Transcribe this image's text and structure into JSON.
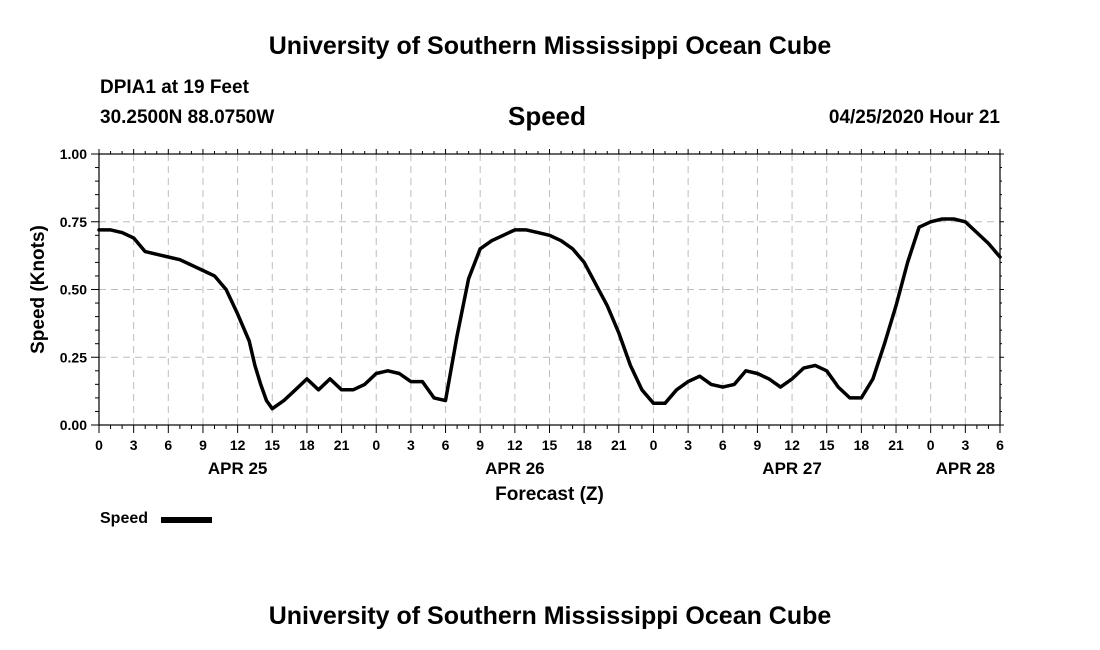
{
  "header": {
    "title_top": "University of Southern Mississippi Ocean Cube",
    "title_bottom": "University of Southern Mississippi Ocean Cube",
    "station": "DPIA1 at 19 Feet",
    "location": "30.2500N 88.0750W",
    "datetime": "04/25/2020 Hour 21"
  },
  "chart_data": {
    "type": "line",
    "title": "Speed",
    "xlabel": "Forecast (Z)",
    "ylabel": "Speed (Knots)",
    "xlim": [
      0,
      78
    ],
    "ylim": [
      0,
      1
    ],
    "grid": true,
    "y_ticks": [
      0,
      0.25,
      0.5,
      0.75,
      1.0
    ],
    "y_tick_labels": [
      "0.00",
      "0.25",
      "0.50",
      "0.75",
      "1.00"
    ],
    "x_ticks": [
      0,
      3,
      6,
      9,
      12,
      15,
      18,
      21,
      24,
      27,
      30,
      33,
      36,
      39,
      42,
      45,
      48,
      51,
      54,
      57,
      60,
      63,
      66,
      69,
      72,
      75,
      78
    ],
    "x_tick_labels": [
      "0",
      "3",
      "6",
      "9",
      "12",
      "15",
      "18",
      "21",
      "0",
      "3",
      "6",
      "9",
      "12",
      "15",
      "18",
      "21",
      "0",
      "3",
      "6",
      "9",
      "12",
      "15",
      "18",
      "21",
      "0",
      "3",
      "6"
    ],
    "date_labels": [
      {
        "x": 12,
        "label": "APR 25"
      },
      {
        "x": 36,
        "label": "APR 26"
      },
      {
        "x": 60,
        "label": "APR 27"
      },
      {
        "x": 75,
        "label": "APR 28"
      }
    ],
    "legend": {
      "position": "bottom-left",
      "label": "Speed"
    },
    "series": [
      {
        "name": "Speed",
        "color": "#000000",
        "x": [
          0,
          1,
          2,
          3,
          4,
          5,
          6,
          7,
          8,
          9,
          10,
          11,
          12,
          13,
          13.5,
          14,
          14.5,
          15,
          16,
          17,
          18,
          19,
          20,
          21,
          22,
          23,
          24,
          25,
          26,
          27,
          28,
          29,
          30,
          31,
          32,
          33,
          34,
          35,
          36,
          37,
          38,
          39,
          40,
          41,
          42,
          43,
          44,
          45,
          46,
          47,
          48,
          49,
          50,
          51,
          52,
          53,
          54,
          55,
          56,
          57,
          58,
          59,
          60,
          61,
          62,
          63,
          64,
          65,
          66,
          67,
          68,
          69,
          70,
          71,
          72,
          73,
          74,
          75,
          76,
          77,
          78
        ],
        "values": [
          0.72,
          0.72,
          0.71,
          0.69,
          0.64,
          0.63,
          0.62,
          0.61,
          0.59,
          0.57,
          0.55,
          0.5,
          0.41,
          0.31,
          0.22,
          0.15,
          0.09,
          0.06,
          0.09,
          0.13,
          0.17,
          0.13,
          0.17,
          0.13,
          0.13,
          0.15,
          0.19,
          0.2,
          0.19,
          0.16,
          0.16,
          0.1,
          0.09,
          0.33,
          0.54,
          0.65,
          0.68,
          0.7,
          0.72,
          0.72,
          0.71,
          0.7,
          0.68,
          0.65,
          0.6,
          0.52,
          0.44,
          0.34,
          0.22,
          0.13,
          0.08,
          0.08,
          0.13,
          0.16,
          0.18,
          0.15,
          0.14,
          0.15,
          0.2,
          0.19,
          0.17,
          0.14,
          0.17,
          0.21,
          0.22,
          0.2,
          0.14,
          0.1,
          0.1,
          0.17,
          0.3,
          0.44,
          0.6,
          0.73,
          0.75,
          0.76,
          0.76,
          0.75,
          0.71,
          0.67,
          0.62
        ]
      }
    ]
  }
}
